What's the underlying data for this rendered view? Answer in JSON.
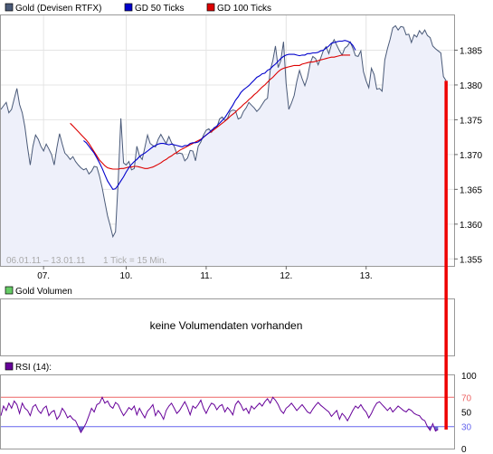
{
  "legend": {
    "price": {
      "label": "Gold (Devisen RTFX)",
      "color": "#4a5a78"
    },
    "gd50": {
      "label": "GD 50 Ticks",
      "color": "#0000cc"
    },
    "gd100": {
      "label": "GD 100 Ticks",
      "color": "#dd0000"
    }
  },
  "price_panel": {
    "date_range": "06.01.11 – 13.01.11",
    "tick_note": "1 Tick = 15 Min."
  },
  "volume_panel": {
    "label": "Gold Volumen",
    "legend_color": "#66cc66",
    "empty_message": "keine Volumendaten vorhanden"
  },
  "rsi_panel": {
    "label": "RSI (14):",
    "legend_color": "#660099"
  },
  "colors": {
    "price_fill": "#eef0fa",
    "price_line": "#4a5a78",
    "gd50_line": "#0000cc",
    "gd100_line": "#dd0000",
    "rsi_line": "#660099",
    "rsi_fill": "#6666cc",
    "marker": "#ee0000",
    "overbought": "#ee6666",
    "oversold": "#6666ee"
  },
  "chart_data": [
    {
      "type": "line",
      "name": "price",
      "y_tick_labels": [
        "1.385",
        "1.380",
        "1.375",
        "1.370",
        "1.365",
        "1.360",
        "1.355"
      ],
      "ylim": [
        1.354,
        1.39
      ],
      "x_tick_labels": [
        "07.",
        "10.",
        "11.",
        "12.",
        "13."
      ],
      "x_tick_positions": [
        16,
        47,
        77,
        107,
        137
      ],
      "xlim": [
        0,
        170
      ],
      "last_index": 167,
      "grid": true,
      "series": [
        {
          "name": "Gold (Devisen RTFX)",
          "values": [
            1.3765,
            1.377,
            1.3775,
            1.376,
            1.3765,
            1.378,
            1.3795,
            1.3772,
            1.376,
            1.374,
            1.371,
            1.3685,
            1.3712,
            1.3728,
            1.3722,
            1.3712,
            1.3705,
            1.3715,
            1.3708,
            1.37,
            1.3685,
            1.371,
            1.373,
            1.3715,
            1.3702,
            1.3698,
            1.3693,
            1.3697,
            1.369,
            1.3685,
            1.3681,
            1.3678,
            1.368,
            1.3672,
            1.3676,
            1.3683,
            1.3682,
            1.3669,
            1.3652,
            1.3632,
            1.3612,
            1.3598,
            1.3582,
            1.3589,
            1.3663,
            1.3752,
            1.3688,
            1.3685,
            1.369,
            1.3678,
            1.368,
            1.3712,
            1.3698,
            1.3693,
            1.371,
            1.3728,
            1.3716,
            1.3713,
            1.3711,
            1.3722,
            1.3729,
            1.3722,
            1.3716,
            1.3726,
            1.3717,
            1.3712,
            1.3701,
            1.3702,
            1.3701,
            1.3691,
            1.3695,
            1.3706,
            1.3705,
            1.3691,
            1.3712,
            1.3718,
            1.3728,
            1.3735,
            1.3737,
            1.3732,
            1.3739,
            1.3739,
            1.3751,
            1.3754,
            1.3749,
            1.3752,
            1.3762,
            1.3764,
            1.3763,
            1.3751,
            1.3753,
            1.3762,
            1.3767,
            1.3775,
            1.3771,
            1.3767,
            1.3762,
            1.3766,
            1.3772,
            1.3778,
            1.3781,
            1.3821,
            1.3835,
            1.3856,
            1.3825,
            1.3835,
            1.3862,
            1.3802,
            1.3765,
            1.3774,
            1.3785,
            1.3805,
            1.3821,
            1.3809,
            1.3799,
            1.3811,
            1.3831,
            1.3841,
            1.3838,
            1.3829,
            1.3839,
            1.385,
            1.3855,
            1.3845,
            1.3858,
            1.3865,
            1.3857,
            1.3849,
            1.3843,
            1.3853,
            1.3856,
            1.3862,
            1.3853,
            1.3842,
            1.3841,
            1.3849,
            1.3819,
            1.3806,
            1.3796,
            1.3824,
            1.3815,
            1.3794,
            1.3795,
            1.3791,
            1.3836,
            1.3852,
            1.3866,
            1.3882,
            1.3885,
            1.3879,
            1.3884,
            1.3883,
            1.3872,
            1.3873,
            1.3861,
            1.3872,
            1.3869,
            1.3878,
            1.3873,
            1.3879,
            1.3871,
            1.3868,
            1.3856,
            1.3852,
            1.3849,
            1.3846,
            1.3812,
            1.3806
          ]
        },
        {
          "name": "GD 50 Ticks",
          "values": [
            null,
            null,
            null,
            null,
            null,
            null,
            null,
            null,
            null,
            null,
            null,
            null,
            null,
            null,
            null,
            null,
            null,
            null,
            null,
            null,
            null,
            null,
            null,
            null,
            null,
            null,
            null,
            null,
            null,
            null,
            null,
            1.372,
            1.3717,
            1.3712,
            1.3707,
            1.3702,
            1.3695,
            1.3688,
            1.368,
            1.3671,
            1.3662,
            1.3656,
            1.365,
            1.3651,
            1.3656,
            1.3662,
            1.3668,
            1.3675,
            1.3681,
            1.3686,
            1.369,
            1.3693,
            1.3697,
            1.37,
            1.3702,
            1.3705,
            1.3708,
            1.3711,
            1.3713,
            1.3715,
            1.3716,
            1.3716,
            1.3715,
            1.3714,
            1.3715,
            1.3714,
            1.3713,
            1.3712,
            1.3711,
            1.3713,
            1.3713,
            1.3716,
            1.3717,
            1.3717,
            1.3718,
            1.3721,
            1.3725,
            1.3728,
            1.3731,
            1.3735,
            1.3738,
            1.3741,
            1.3745,
            1.3749,
            1.3753,
            1.3759,
            1.3765,
            1.3771,
            1.3778,
            1.3783,
            1.3789,
            1.3793,
            1.3796,
            1.3799,
            1.3803,
            1.3807,
            1.3811,
            1.3813,
            1.3816,
            1.3817,
            1.3821,
            1.3823,
            1.3827,
            1.383,
            1.3834,
            1.3838,
            1.3841,
            1.3843,
            1.3844,
            1.3844,
            1.3844,
            1.3843,
            1.3842,
            1.3843,
            1.3843,
            1.3845,
            1.3845,
            1.3846,
            1.3846,
            1.3847,
            1.3849,
            1.385,
            1.3853,
            1.3856,
            1.386,
            1.3861,
            1.3862,
            1.3863,
            1.3863,
            1.3864,
            1.3863,
            1.3861,
            1.3857,
            1.385
          ]
        },
        {
          "name": "GD 100 Ticks",
          "values": [
            null,
            null,
            null,
            null,
            null,
            null,
            null,
            null,
            null,
            null,
            null,
            null,
            null,
            null,
            null,
            null,
            null,
            null,
            null,
            null,
            null,
            null,
            null,
            null,
            null,
            null,
            1.3745,
            1.3741,
            1.3737,
            1.3733,
            1.3729,
            1.3725,
            1.3721,
            1.3716,
            1.371,
            1.3704,
            1.3698,
            1.3692,
            1.3688,
            1.3684,
            1.3681,
            1.368,
            1.3679,
            1.3679,
            1.3679,
            1.368,
            1.368,
            1.3681,
            1.3682,
            1.3682,
            1.3683,
            1.3683,
            1.3682,
            1.3681,
            1.368,
            1.368,
            1.3681,
            1.3682,
            1.3684,
            1.3686,
            1.3688,
            1.3691,
            1.3693,
            1.3696,
            1.3698,
            1.3701,
            1.3703,
            1.3706,
            1.3708,
            1.371,
            1.3712,
            1.3714,
            1.3716,
            1.3718,
            1.372,
            1.3722,
            1.3725,
            1.3728,
            1.3731,
            1.3733,
            1.3736,
            1.3739,
            1.3742,
            1.3745,
            1.3748,
            1.3751,
            1.3755,
            1.3758,
            1.3761,
            1.3765,
            1.3768,
            1.3772,
            1.3775,
            1.3779,
            1.3782,
            1.3786,
            1.3789,
            1.3793,
            1.3797,
            1.38,
            1.3804,
            1.3808,
            1.3811,
            1.3815,
            1.3819,
            1.3822,
            1.3824,
            1.3825,
            1.3826,
            1.3827,
            1.3828,
            1.3828,
            1.3828,
            1.383,
            1.3831,
            1.3832,
            1.3833,
            1.3833,
            1.3834,
            1.3835,
            1.3836,
            1.3837,
            1.3838,
            1.3839,
            1.384,
            1.384,
            1.3841,
            1.3842,
            1.3843,
            1.3843,
            1.3843,
            1.3843
          ]
        }
      ]
    },
    {
      "type": "line",
      "name": "rsi",
      "y_tick_labels": [
        "100",
        "70",
        "50",
        "30",
        "0"
      ],
      "ylim": [
        0,
        100
      ],
      "overbought": 70,
      "oversold": 30,
      "xlim": [
        0,
        170
      ],
      "series": [
        {
          "name": "RSI (14):",
          "values": [
            45,
            58,
            52,
            62,
            55,
            65,
            60,
            48,
            62,
            55,
            52,
            45,
            57,
            60,
            52,
            48,
            55,
            58,
            45,
            50,
            52,
            40,
            45,
            55,
            50,
            42,
            45,
            40,
            38,
            30,
            22,
            28,
            35,
            45,
            55,
            50,
            60,
            62,
            70,
            62,
            65,
            58,
            55,
            63,
            60,
            52,
            45,
            50,
            56,
            53,
            58,
            46,
            55,
            48,
            42,
            51,
            55,
            60,
            45,
            52,
            47,
            40,
            52,
            58,
            62,
            55,
            48,
            52,
            58,
            64,
            56,
            46,
            58,
            55,
            60,
            66,
            55,
            48,
            56,
            62,
            60,
            53,
            58,
            60,
            50,
            56,
            52,
            46,
            60,
            65,
            60,
            52,
            55,
            48,
            58,
            54,
            58,
            62,
            58,
            64,
            68,
            62,
            70,
            66,
            60,
            52,
            48,
            55,
            58,
            62,
            57,
            52,
            56,
            60,
            55,
            50,
            48,
            54,
            59,
            63,
            59,
            56,
            53,
            50,
            44,
            48,
            52,
            40,
            48,
            44,
            38,
            45,
            52,
            58,
            55,
            60,
            54,
            50,
            42,
            48,
            56,
            62,
            64,
            60,
            56,
            52,
            56,
            50,
            54,
            58,
            55,
            52,
            50,
            54,
            52,
            48,
            46,
            45,
            40,
            38,
            30,
            25,
            34,
            24,
            26
          ]
        }
      ]
    }
  ]
}
